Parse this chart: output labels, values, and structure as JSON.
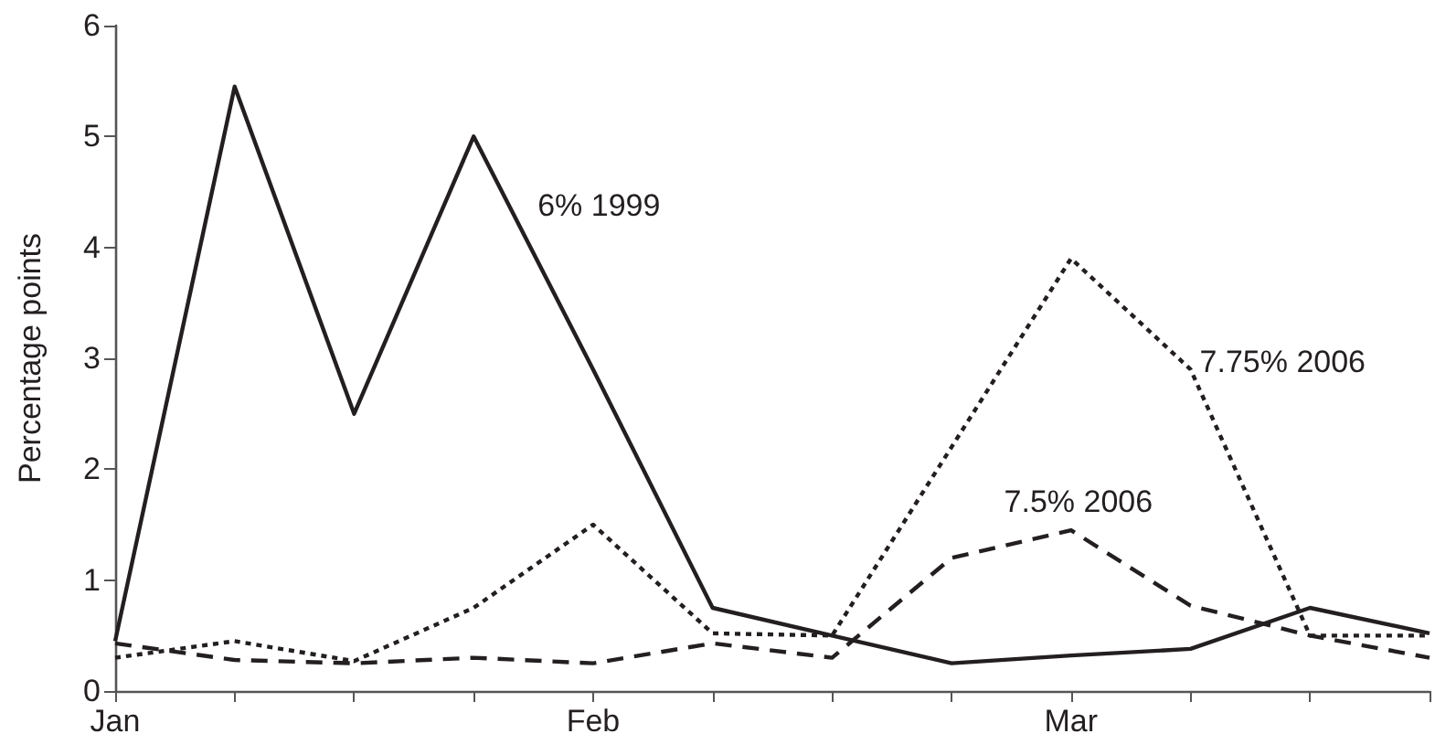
{
  "chart_data": {
    "type": "line",
    "ylabel": "Percentage points",
    "categories": [
      "Jan",
      null,
      null,
      null,
      "Feb",
      null,
      null,
      null,
      "Mar",
      null,
      null,
      null
    ],
    "ylim": [
      0,
      6
    ],
    "yticks": [
      0,
      1,
      2,
      3,
      4,
      5,
      6
    ],
    "grid": false,
    "legend": false,
    "marker": "none",
    "series": [
      {
        "name": "6% 1999",
        "color": "#231f20",
        "line_style": "solid",
        "values": [
          0.45,
          5.45,
          2.5,
          5.0,
          2.9,
          0.75,
          0.5,
          0.25,
          0.32,
          0.38,
          0.75,
          0.52
        ]
      },
      {
        "name": "7.75% 2006",
        "color": "#231f20",
        "line_style": "dotted",
        "values": [
          0.3,
          0.45,
          0.27,
          0.75,
          1.5,
          0.52,
          0.5,
          2.2,
          3.9,
          2.9,
          0.5,
          0.5
        ]
      },
      {
        "name": "7.5% 2006",
        "color": "#231f20",
        "line_style": "dashed",
        "values": [
          0.43,
          0.28,
          0.25,
          0.3,
          0.25,
          0.43,
          0.3,
          1.2,
          1.45,
          0.77,
          0.5,
          0.3
        ]
      }
    ]
  }
}
